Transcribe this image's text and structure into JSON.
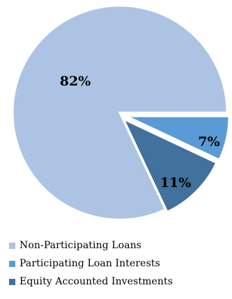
{
  "chart_data": {
    "type": "pie",
    "slices": [
      {
        "label": "Non-Participating Loans",
        "value": 82,
        "display": "82%",
        "color": "#adc3e3"
      },
      {
        "label": "Participating Loan Interests",
        "value": 7,
        "display": "7%",
        "color": "#5b9bd5"
      },
      {
        "label": "Equity Accounted Investments",
        "value": 11,
        "display": "11%",
        "color": "#41719c"
      }
    ],
    "start_angle_deg": 0,
    "direction": "clockwise",
    "exploded_slices": [
      "Participating Loan Interests",
      "Equity Accounted Investments"
    ],
    "legend_position": "bottom"
  }
}
